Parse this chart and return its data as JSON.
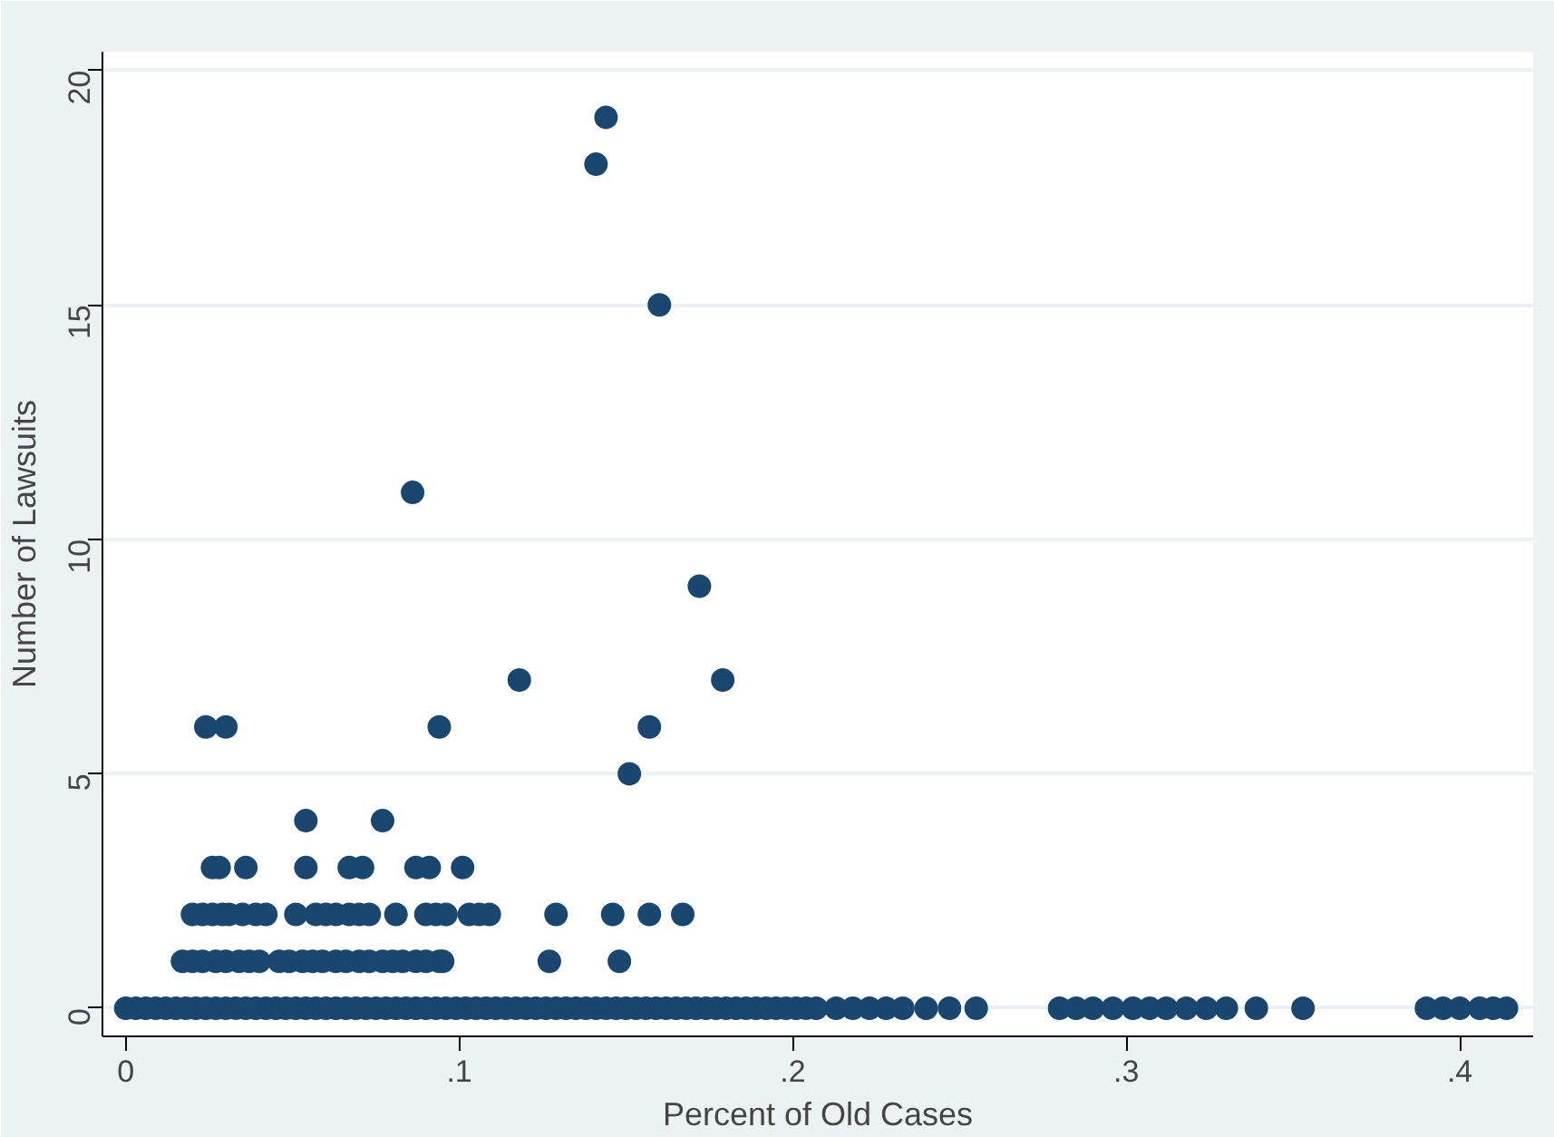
{
  "chart_data": {
    "type": "scatter",
    "xlabel": "Percent of Old Cases",
    "ylabel": "Number of Lawsuits",
    "xlim": [
      -0.007,
      0.422
    ],
    "ylim": [
      -0.6,
      20.4
    ],
    "xticks": [
      {
        "value": 0,
        "label": "0"
      },
      {
        "value": 0.1,
        "label": ".1"
      },
      {
        "value": 0.2,
        "label": ".2"
      },
      {
        "value": 0.3,
        "label": ".3"
      },
      {
        "value": 0.4,
        "label": ".4"
      }
    ],
    "yticks": [
      0,
      5,
      10,
      15,
      20
    ],
    "grid": "y",
    "marker": "circle",
    "series": [
      {
        "color": "#1a476f",
        "x": [
          0,
          0.003,
          0.006,
          0.009,
          0.012,
          0.015,
          0.018,
          0.021,
          0.024,
          0.027,
          0.03,
          0.033,
          0.036,
          0.039,
          0.042,
          0.045,
          0.048,
          0.051,
          0.054,
          0.057,
          0.06,
          0.063,
          0.066,
          0.069,
          0.072,
          0.075,
          0.078,
          0.081,
          0.084,
          0.087,
          0.09,
          0.093,
          0.096,
          0.099,
          0.102,
          0.105,
          0.108,
          0.111,
          0.114,
          0.117,
          0.12,
          0.123,
          0.126,
          0.129,
          0.132,
          0.135,
          0.138,
          0.141,
          0.144,
          0.147,
          0.15,
          0.153,
          0.156,
          0.159,
          0.162,
          0.165,
          0.168,
          0.171,
          0.174,
          0.177,
          0.18,
          0.183,
          0.186,
          0.189,
          0.192,
          0.195,
          0.198,
          0.201,
          0.204,
          0.207,
          0.213,
          0.218,
          0.223,
          0.228,
          0.233,
          0.24,
          0.247,
          0.255,
          0.28,
          0.285,
          0.29,
          0.296,
          0.302,
          0.307,
          0.312,
          0.318,
          0.324,
          0.33,
          0.339,
          0.353,
          0.39,
          0.395,
          0.4,
          0.406,
          0.41,
          0.414,
          0.017,
          0.02,
          0.023,
          0.027,
          0.03,
          0.034,
          0.037,
          0.04,
          0.046,
          0.049,
          0.053,
          0.056,
          0.059,
          0.063,
          0.066,
          0.07,
          0.073,
          0.077,
          0.08,
          0.083,
          0.087,
          0.09,
          0.094,
          0.095,
          0.127,
          0.148,
          0.02,
          0.023,
          0.026,
          0.029,
          0.031,
          0.035,
          0.039,
          0.042,
          0.051,
          0.057,
          0.06,
          0.063,
          0.067,
          0.07,
          0.073,
          0.081,
          0.09,
          0.093,
          0.096,
          0.103,
          0.106,
          0.109,
          0.129,
          0.146,
          0.157,
          0.167,
          0.026,
          0.028,
          0.036,
          0.054,
          0.067,
          0.071,
          0.087,
          0.091,
          0.101,
          0.054,
          0.077,
          0.151,
          0.024,
          0.03,
          0.094,
          0.157,
          0.118,
          0.179,
          0.172,
          0.086,
          0.16,
          0.141,
          0.144
        ],
        "values": [
          0,
          0,
          0,
          0,
          0,
          0,
          0,
          0,
          0,
          0,
          0,
          0,
          0,
          0,
          0,
          0,
          0,
          0,
          0,
          0,
          0,
          0,
          0,
          0,
          0,
          0,
          0,
          0,
          0,
          0,
          0,
          0,
          0,
          0,
          0,
          0,
          0,
          0,
          0,
          0,
          0,
          0,
          0,
          0,
          0,
          0,
          0,
          0,
          0,
          0,
          0,
          0,
          0,
          0,
          0,
          0,
          0,
          0,
          0,
          0,
          0,
          0,
          0,
          0,
          0,
          0,
          0,
          0,
          0,
          0,
          0,
          0,
          0,
          0,
          0,
          0,
          0,
          0,
          0,
          0,
          0,
          0,
          0,
          0,
          0,
          0,
          0,
          0,
          0,
          0,
          0,
          0,
          0,
          0,
          0,
          0,
          1,
          1,
          1,
          1,
          1,
          1,
          1,
          1,
          1,
          1,
          1,
          1,
          1,
          1,
          1,
          1,
          1,
          1,
          1,
          1,
          1,
          1,
          1,
          1,
          1,
          1,
          2,
          2,
          2,
          2,
          2,
          2,
          2,
          2,
          2,
          2,
          2,
          2,
          2,
          2,
          2,
          2,
          2,
          2,
          2,
          2,
          2,
          2,
          2,
          2,
          2,
          2,
          3,
          3,
          3,
          3,
          3,
          3,
          3,
          3,
          3,
          4,
          4,
          5,
          6,
          6,
          6,
          6,
          7,
          7,
          9,
          11,
          15,
          18,
          19
        ]
      }
    ]
  }
}
